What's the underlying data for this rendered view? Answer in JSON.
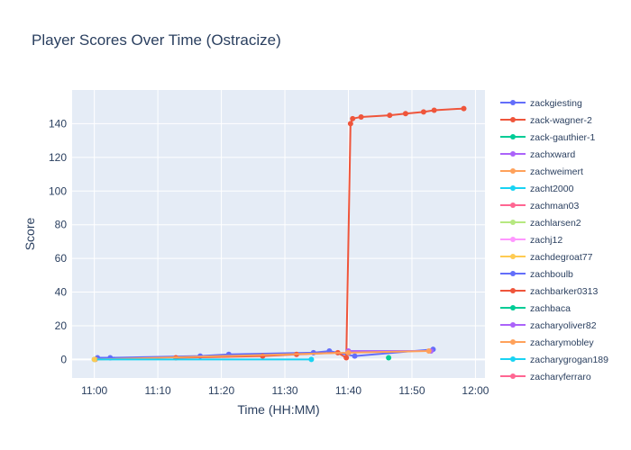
{
  "chart_data": {
    "type": "line",
    "title": "Player Scores Over Time (Ostracize)",
    "xlabel": "Time (HH:MM)",
    "ylabel": "Score",
    "x_ticks": [
      "11:00",
      "11:10",
      "11:20",
      "11:30",
      "11:40",
      "11:50",
      "12:00"
    ],
    "y_ticks": [
      0,
      20,
      40,
      60,
      80,
      100,
      120,
      140
    ],
    "xlim_minutes_after_11": [
      -3.5,
      61.5
    ],
    "ylim": [
      -11,
      160
    ],
    "grid": true,
    "legend_position": "right",
    "series": [
      {
        "name": "zackgiesting",
        "color": "#636efa",
        "points": [
          [
            "11:00:30",
            1
          ],
          [
            "11:02:30",
            1
          ],
          [
            "11:16:40",
            2
          ],
          [
            "11:21:10",
            3
          ],
          [
            "11:34:30",
            4
          ],
          [
            "11:37:00",
            5
          ],
          [
            "11:41:00",
            2
          ],
          [
            "11:53:20",
            6
          ]
        ]
      },
      {
        "name": "zack-wagner-2",
        "color": "#EF553B",
        "points": [
          [
            "11:12:50",
            1
          ],
          [
            "11:26:30",
            2
          ],
          [
            "11:31:50",
            3
          ],
          [
            "11:38:20",
            4
          ],
          [
            "11:39:40",
            1
          ],
          [
            "11:40:20",
            140
          ],
          [
            "11:40:40",
            143
          ],
          [
            "11:42:00",
            144
          ],
          [
            "11:46:30",
            145
          ],
          [
            "11:49:00",
            146
          ],
          [
            "11:51:50",
            147
          ],
          [
            "11:53:30",
            148
          ],
          [
            "11:58:10",
            149
          ]
        ]
      },
      {
        "name": "zack-gauthier-1",
        "color": "#00cc96",
        "points": [
          [
            "11:46:20",
            1
          ]
        ]
      },
      {
        "name": "zachxward",
        "color": "#ab63fa",
        "points": [
          [
            "11:40:00",
            5
          ],
          [
            "11:53:00",
            5
          ]
        ]
      },
      {
        "name": "zachweimert",
        "color": "#FFA15A",
        "points": [
          [
            "11:00:10",
            0
          ],
          [
            "11:40:00",
            4
          ],
          [
            "11:52:40",
            5
          ]
        ]
      },
      {
        "name": "zacht2000",
        "color": "#19d3f3",
        "points": [
          [
            "11:00:00",
            0
          ],
          [
            "11:34:10",
            0
          ]
        ]
      },
      {
        "name": "zachman03",
        "color": "#FF6692",
        "points": []
      },
      {
        "name": "zachlarsen2",
        "color": "#B6E880",
        "points": []
      },
      {
        "name": "zachj12",
        "color": "#FF97FF",
        "points": []
      },
      {
        "name": "zachdegroat77",
        "color": "#FECB52",
        "points": [
          [
            "11:00:00",
            0
          ]
        ]
      },
      {
        "name": "zachboulb",
        "color": "#636efa",
        "points": []
      },
      {
        "name": "zachbarker0313",
        "color": "#EF553B",
        "points": []
      },
      {
        "name": "zachbaca",
        "color": "#00cc96",
        "points": []
      },
      {
        "name": "zacharyoliver82",
        "color": "#ab63fa",
        "points": []
      },
      {
        "name": "zacharymobley",
        "color": "#FFA15A",
        "points": []
      },
      {
        "name": "zacharygrogan189",
        "color": "#19d3f3",
        "points": []
      },
      {
        "name": "zacharyferraro",
        "color": "#FF6692",
        "points": []
      }
    ]
  }
}
